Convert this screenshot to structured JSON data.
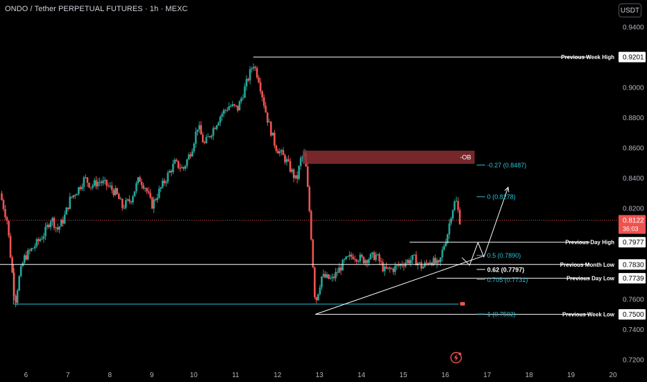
{
  "header": {
    "title": "ONDO / Tether PERPETUAL FUTURES · 1h · MEXC",
    "unit_button": "USDT"
  },
  "colors": {
    "background": "#000000",
    "up": "#26a69a",
    "down": "#ef5350",
    "level_line": "#ffffff",
    "fib": "#26c6da",
    "ob_zone": "#8b2e34",
    "price_line": "#ef5350"
  },
  "icons": {
    "bottom_logo": "lightning-icon"
  },
  "chart_data": {
    "type": "candlestick",
    "title": "",
    "xlabel": "",
    "ylabel": "",
    "ylim": [
      0.7053,
      0.9578
    ],
    "xlim": [
      5.38,
      20.1
    ],
    "y_ticks": [
      "0.9400",
      "0.9000",
      "0.8800",
      "0.8600",
      "0.8400",
      "0.8200",
      "0.7600",
      "0.7400",
      "0.7200"
    ],
    "x_ticks": [
      "6",
      "7",
      "8",
      "9",
      "10",
      "11",
      "12",
      "13",
      "14",
      "15",
      "16",
      "17",
      "18",
      "19",
      "20"
    ],
    "grid": false,
    "current_price": {
      "value": 0.8122,
      "label": "0.8122",
      "countdown": "36:03"
    },
    "price_path": [
      [
        5.38,
        0.83
      ],
      [
        5.55,
        0.812
      ],
      [
        5.68,
        0.775
      ],
      [
        5.74,
        0.757
      ],
      [
        5.82,
        0.772
      ],
      [
        5.95,
        0.787
      ],
      [
        6.2,
        0.795
      ],
      [
        6.45,
        0.804
      ],
      [
        6.6,
        0.814
      ],
      [
        6.75,
        0.806
      ],
      [
        6.9,
        0.813
      ],
      [
        7.05,
        0.826
      ],
      [
        7.25,
        0.833
      ],
      [
        7.4,
        0.84
      ],
      [
        7.55,
        0.835
      ],
      [
        7.75,
        0.838
      ],
      [
        7.95,
        0.835
      ],
      [
        8.15,
        0.83
      ],
      [
        8.3,
        0.821
      ],
      [
        8.5,
        0.826
      ],
      [
        8.7,
        0.84
      ],
      [
        8.85,
        0.834
      ],
      [
        9.0,
        0.822
      ],
      [
        9.15,
        0.83
      ],
      [
        9.4,
        0.843
      ],
      [
        9.55,
        0.85
      ],
      [
        9.75,
        0.846
      ],
      [
        9.95,
        0.859
      ],
      [
        10.1,
        0.875
      ],
      [
        10.25,
        0.862
      ],
      [
        10.45,
        0.872
      ],
      [
        10.65,
        0.882
      ],
      [
        10.85,
        0.888
      ],
      [
        11.05,
        0.886
      ],
      [
        11.25,
        0.902
      ],
      [
        11.42,
        0.916
      ],
      [
        11.55,
        0.906
      ],
      [
        11.75,
        0.88
      ],
      [
        11.95,
        0.861
      ],
      [
        12.2,
        0.852
      ],
      [
        12.45,
        0.838
      ],
      [
        12.55,
        0.852
      ],
      [
        12.65,
        0.856
      ],
      [
        12.78,
        0.812
      ],
      [
        12.9,
        0.757
      ],
      [
        13.05,
        0.775
      ],
      [
        13.3,
        0.773
      ],
      [
        13.6,
        0.785
      ],
      [
        13.8,
        0.789
      ],
      [
        14.05,
        0.786
      ],
      [
        14.35,
        0.789
      ],
      [
        14.55,
        0.779
      ],
      [
        14.75,
        0.78
      ],
      [
        15.0,
        0.784
      ],
      [
        15.25,
        0.787
      ],
      [
        15.45,
        0.781
      ],
      [
        15.65,
        0.786
      ],
      [
        15.85,
        0.782
      ],
      [
        15.95,
        0.794
      ],
      [
        16.05,
        0.803
      ],
      [
        16.15,
        0.818
      ],
      [
        16.25,
        0.826
      ],
      [
        16.35,
        0.812
      ]
    ],
    "levels": [
      {
        "name": "Previous Week High",
        "value": 0.9201,
        "label": "0.9201",
        "x_start": 11.42,
        "x_end": 19.45
      },
      {
        "name": "Previous Day High",
        "value": 0.7977,
        "label": "0.7977",
        "x_start": 15.15,
        "x_end": 19.45
      },
      {
        "name": "Previous Month Low",
        "value": 0.783,
        "label": "0.7830",
        "x_start": 5.38,
        "x_end": 19.45
      },
      {
        "name": "Previous Day Low",
        "value": 0.7739,
        "label": "0.7739",
        "x_start": 15.8,
        "x_end": 19.45
      },
      {
        "name": "Previous Week Low",
        "value": 0.75,
        "label": "0.7500",
        "x_start": 12.9,
        "x_end": 19.45
      }
    ],
    "fib_levels": [
      {
        "label": "-0.27 (0.8487)",
        "value": 0.8487
      },
      {
        "label": "0 (0.8278)",
        "value": 0.8278
      },
      {
        "label": "0.5 (0.7890)",
        "value": 0.789
      },
      {
        "label": "0.62 (0.7797)",
        "value": 0.7797
      },
      {
        "label": "0.705 (0.7731)",
        "value": 0.7731
      },
      {
        "label": "1 (0.7502)",
        "value": 0.7502
      }
    ],
    "order_block": {
      "label": "-OB",
      "y_top": 0.8582,
      "y_bottom": 0.8495,
      "x_start": 12.6,
      "x_end": 16.7
    },
    "support_line": {
      "value": 0.7568,
      "x_start": 5.7,
      "x_end": 16.32
    },
    "trendline": {
      "start": [
        12.9,
        0.75
      ],
      "end": [
        16.95,
        0.789
      ]
    },
    "projection_path": [
      [
        16.4,
        0.7875
      ],
      [
        16.58,
        0.7825
      ],
      [
        16.78,
        0.7975
      ],
      [
        16.92,
        0.788
      ],
      [
        17.5,
        0.834
      ]
    ]
  }
}
